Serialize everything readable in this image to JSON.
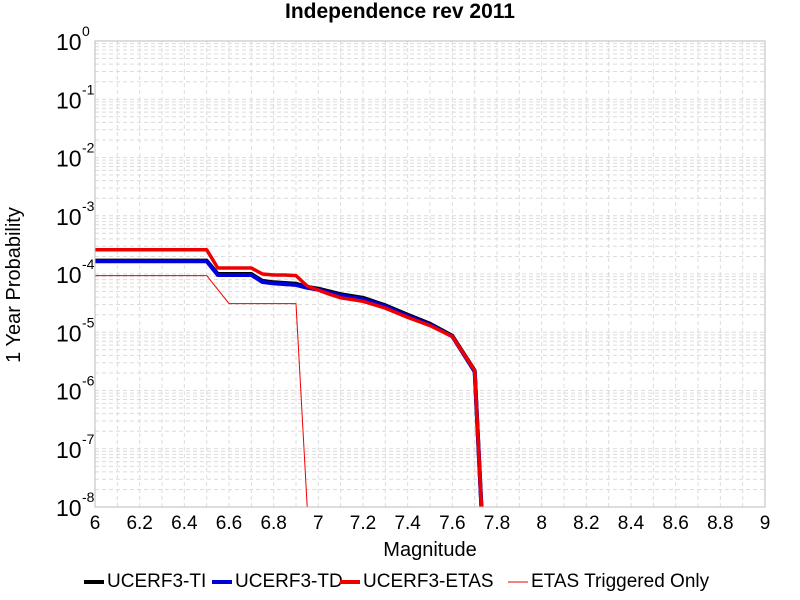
{
  "chart_data": {
    "type": "line",
    "title": "Independence rev 2011",
    "xlabel": "Magnitude",
    "ylabel": "1 Year Probability",
    "xlim": [
      6,
      9
    ],
    "ylim": [
      1e-08,
      1
    ],
    "yscale": "log",
    "grid": true,
    "legend_position": "bottom",
    "x_ticks": [
      "6",
      "6.2",
      "6.4",
      "6.6",
      "6.8",
      "7",
      "7.2",
      "7.4",
      "7.6",
      "7.8",
      "8",
      "8.2",
      "8.4",
      "8.6",
      "8.8",
      "9"
    ],
    "y_ticks": [
      {
        "base": "10",
        "exp": "-8"
      },
      {
        "base": "10",
        "exp": "-7"
      },
      {
        "base": "10",
        "exp": "-6"
      },
      {
        "base": "10",
        "exp": "-5"
      },
      {
        "base": "10",
        "exp": "-4"
      },
      {
        "base": "10",
        "exp": "-3"
      },
      {
        "base": "10",
        "exp": "-2"
      },
      {
        "base": "10",
        "exp": "-1"
      },
      {
        "base": "10",
        "exp": "0"
      }
    ],
    "series": [
      {
        "name": "UCERF3-TI",
        "color": "#000000",
        "width": 4,
        "points": [
          [
            6.0,
            0.00017
          ],
          [
            6.5,
            0.00017
          ],
          [
            6.55,
            0.0001
          ],
          [
            6.6,
            0.0001
          ],
          [
            6.65,
            0.0001
          ],
          [
            6.7,
            0.0001
          ],
          [
            6.75,
            7.6e-05
          ],
          [
            6.8,
            7.2e-05
          ],
          [
            6.85,
            7e-05
          ],
          [
            6.9,
            6.8e-05
          ],
          [
            6.95,
            6e-05
          ],
          [
            7.0,
            5.6e-05
          ],
          [
            7.05,
            5e-05
          ],
          [
            7.1,
            4.5e-05
          ],
          [
            7.2,
            3.9e-05
          ],
          [
            7.3,
            2.9e-05
          ],
          [
            7.4,
            2e-05
          ],
          [
            7.5,
            1.4e-05
          ],
          [
            7.6,
            8.7e-06
          ],
          [
            7.7,
            2.2e-06
          ],
          [
            7.73,
            1e-08
          ]
        ]
      },
      {
        "name": "UCERF3-TD",
        "color": "#0000dd",
        "width": 4,
        "points": [
          [
            6.0,
            0.000165
          ],
          [
            6.5,
            0.000165
          ],
          [
            6.55,
            9.6e-05
          ],
          [
            6.6,
            9.6e-05
          ],
          [
            6.65,
            9.6e-05
          ],
          [
            6.7,
            9.6e-05
          ],
          [
            6.75,
            7.3e-05
          ],
          [
            6.8,
            6.9e-05
          ],
          [
            6.85,
            6.7e-05
          ],
          [
            6.9,
            6.5e-05
          ],
          [
            6.95,
            5.8e-05
          ],
          [
            7.0,
            5.4e-05
          ],
          [
            7.05,
            4.8e-05
          ],
          [
            7.1,
            4.3e-05
          ],
          [
            7.2,
            3.7e-05
          ],
          [
            7.3,
            2.8e-05
          ],
          [
            7.4,
            1.9e-05
          ],
          [
            7.5,
            1.35e-05
          ],
          [
            7.6,
            8.5e-06
          ],
          [
            7.7,
            2.1e-06
          ],
          [
            7.73,
            1e-08
          ]
        ]
      },
      {
        "name": "UCERF3-ETAS",
        "color": "#ee0000",
        "width": 3.5,
        "points": [
          [
            6.0,
            0.00026
          ],
          [
            6.5,
            0.00026
          ],
          [
            6.55,
            0.000127
          ],
          [
            6.6,
            0.000127
          ],
          [
            6.65,
            0.000127
          ],
          [
            6.7,
            0.000127
          ],
          [
            6.75,
            0.0001
          ],
          [
            6.8,
            9.6e-05
          ],
          [
            6.85,
            9.6e-05
          ],
          [
            6.9,
            9.4e-05
          ],
          [
            6.95,
            6.2e-05
          ],
          [
            7.0,
            5.3e-05
          ],
          [
            7.05,
            4.5e-05
          ],
          [
            7.1,
            3.9e-05
          ],
          [
            7.2,
            3.4e-05
          ],
          [
            7.3,
            2.6e-05
          ],
          [
            7.4,
            1.8e-05
          ],
          [
            7.5,
            1.3e-05
          ],
          [
            7.6,
            8.5e-06
          ],
          [
            7.7,
            2.2e-06
          ],
          [
            7.73,
            1e-08
          ]
        ]
      },
      {
        "name": "ETAS Triggered Only",
        "color": "#ee0000",
        "width": 1,
        "points": [
          [
            6.0,
            9.4e-05
          ],
          [
            6.5,
            9.4e-05
          ],
          [
            6.6,
            3.1e-05
          ],
          [
            6.65,
            3.1e-05
          ],
          [
            6.7,
            3.1e-05
          ],
          [
            6.75,
            3.1e-05
          ],
          [
            6.8,
            3.1e-05
          ],
          [
            6.85,
            3.1e-05
          ],
          [
            6.9,
            3.1e-05
          ],
          [
            6.95,
            1e-08
          ]
        ]
      }
    ]
  }
}
